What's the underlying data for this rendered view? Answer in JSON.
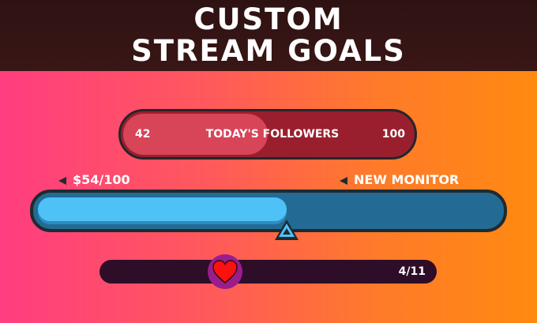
{
  "header": {
    "line1": "CUSTOM",
    "line2": "STREAM GOALS"
  },
  "followers_goal": {
    "current": "42",
    "label": "TODAY'S FOLLOWERS",
    "target": "100",
    "progress": 0.42,
    "fill_color": "#d84458",
    "track_color": "#9a1f2e"
  },
  "money_goal": {
    "amount_label": "$54/100",
    "goal_label": "NEW MONITOR",
    "progress": 0.54,
    "fill_color": "#4ec2f7",
    "track_color": "#236b94"
  },
  "hearts_goal": {
    "count_label": "4/11",
    "progress": 0.3636,
    "icon": "heart-icon"
  }
}
